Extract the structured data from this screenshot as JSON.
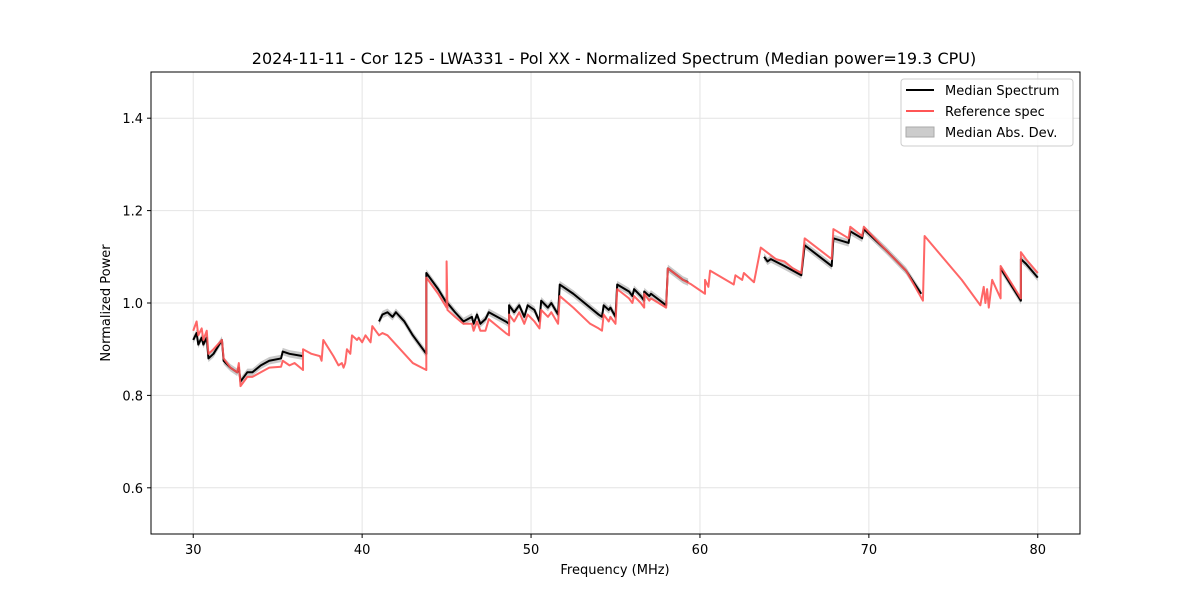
{
  "chart_data": {
    "type": "line",
    "title": "2024-11-11 - Cor 125 - LWA331 - Pol XX - Normalized Spectrum (Median power=19.3 CPU)",
    "xlabel": "Frequency (MHz)",
    "ylabel": "Normalized Power",
    "xlim": [
      27.5,
      82.5
    ],
    "ylim": [
      0.5,
      1.5
    ],
    "xticks": [
      30,
      40,
      50,
      60,
      70,
      80
    ],
    "yticks": [
      0.6,
      0.8,
      1.0,
      1.2,
      1.4
    ],
    "xtick_labels": [
      "30",
      "40",
      "50",
      "60",
      "70",
      "80"
    ],
    "ytick_labels": [
      "0.6",
      "0.8",
      "1.0",
      "1.2",
      "1.4"
    ],
    "grid": true,
    "legend_position": "top-right",
    "legend": [
      "Median Spectrum",
      "Reference spec",
      "Median Abs. Dev."
    ],
    "colors": {
      "median": "#000000",
      "reference": "#ff5555",
      "mad": "#bbbbbb"
    },
    "mad": 0.008,
    "series": [
      {
        "name": "Reference spec",
        "points": [
          [
            30.0,
            0.94
          ],
          [
            30.2,
            0.96
          ],
          [
            30.3,
            0.93
          ],
          [
            30.5,
            0.945
          ],
          [
            30.6,
            0.92
          ],
          [
            30.8,
            0.94
          ],
          [
            30.9,
            0.89
          ],
          [
            31.2,
            0.9
          ],
          [
            31.7,
            0.92
          ],
          [
            31.8,
            0.88
          ],
          [
            32.2,
            0.86
          ],
          [
            32.6,
            0.85
          ],
          [
            32.7,
            0.87
          ],
          [
            32.8,
            0.82
          ],
          [
            33.2,
            0.84
          ],
          [
            33.5,
            0.84
          ],
          [
            34.0,
            0.85
          ],
          [
            34.5,
            0.86
          ],
          [
            35.2,
            0.862
          ],
          [
            35.3,
            0.875
          ],
          [
            35.7,
            0.865
          ],
          [
            36.0,
            0.87
          ],
          [
            36.5,
            0.855
          ],
          [
            36.5,
            0.9
          ],
          [
            37.0,
            0.89
          ],
          [
            37.5,
            0.885
          ],
          [
            37.6,
            0.875
          ],
          [
            37.7,
            0.92
          ],
          [
            38.3,
            0.885
          ],
          [
            38.6,
            0.865
          ],
          [
            38.8,
            0.87
          ],
          [
            38.9,
            0.86
          ],
          [
            39.0,
            0.87
          ],
          [
            39.1,
            0.9
          ],
          [
            39.3,
            0.89
          ],
          [
            39.4,
            0.93
          ],
          [
            39.7,
            0.92
          ],
          [
            39.8,
            0.925
          ],
          [
            40.0,
            0.915
          ],
          [
            40.2,
            0.93
          ],
          [
            40.5,
            0.915
          ],
          [
            40.6,
            0.95
          ],
          [
            41.0,
            0.93
          ],
          [
            41.2,
            0.935
          ],
          [
            41.5,
            0.93
          ],
          [
            42.0,
            0.91
          ],
          [
            42.5,
            0.89
          ],
          [
            43.0,
            0.87
          ],
          [
            43.8,
            0.855
          ],
          [
            43.8,
            1.055
          ],
          [
            44.5,
            1.02
          ],
          [
            45.0,
            0.99
          ],
          [
            45.0,
            1.09
          ],
          [
            45.05,
            0.985
          ],
          [
            45.5,
            0.97
          ],
          [
            46.0,
            0.955
          ],
          [
            46.5,
            0.955
          ],
          [
            46.6,
            0.94
          ],
          [
            46.8,
            0.96
          ],
          [
            47.0,
            0.94
          ],
          [
            47.3,
            0.94
          ],
          [
            47.5,
            0.965
          ],
          [
            48.0,
            0.95
          ],
          [
            48.5,
            0.935
          ],
          [
            48.7,
            0.93
          ],
          [
            48.7,
            0.975
          ],
          [
            49.0,
            0.96
          ],
          [
            49.3,
            0.98
          ],
          [
            49.6,
            0.955
          ],
          [
            49.8,
            0.975
          ],
          [
            50.2,
            0.96
          ],
          [
            50.5,
            0.945
          ],
          [
            50.6,
            0.985
          ],
          [
            51.0,
            0.97
          ],
          [
            51.2,
            0.98
          ],
          [
            51.6,
            0.955
          ],
          [
            51.7,
            1.015
          ],
          [
            52.5,
            0.99
          ],
          [
            53.5,
            0.955
          ],
          [
            54.0,
            0.945
          ],
          [
            54.2,
            0.94
          ],
          [
            54.3,
            0.975
          ],
          [
            54.6,
            0.96
          ],
          [
            54.7,
            0.97
          ],
          [
            55.0,
            0.955
          ],
          [
            55.1,
            1.03
          ],
          [
            55.8,
            1.01
          ],
          [
            56.0,
            1.0
          ],
          [
            56.1,
            1.015
          ],
          [
            56.5,
            1.0
          ],
          [
            56.7,
            0.99
          ],
          [
            56.7,
            1.02
          ],
          [
            57.0,
            1.005
          ],
          [
            57.1,
            1.01
          ],
          [
            58.0,
            0.99
          ],
          [
            58.1,
            1.075
          ],
          [
            59.0,
            1.05
          ],
          [
            59.5,
            1.04
          ],
          [
            60.3,
            1.02
          ],
          [
            60.3,
            1.05
          ],
          [
            60.5,
            1.035
          ],
          [
            60.6,
            1.07
          ],
          [
            62.0,
            1.04
          ],
          [
            62.1,
            1.06
          ],
          [
            62.5,
            1.05
          ],
          [
            62.6,
            1.065
          ],
          [
            63.2,
            1.045
          ],
          [
            63.6,
            1.12
          ],
          [
            64.5,
            1.095
          ],
          [
            65.0,
            1.09
          ],
          [
            65.5,
            1.075
          ],
          [
            66.0,
            1.065
          ],
          [
            66.2,
            1.14
          ],
          [
            67.8,
            1.095
          ],
          [
            67.9,
            1.16
          ],
          [
            68.8,
            1.14
          ],
          [
            68.9,
            1.165
          ],
          [
            69.6,
            1.145
          ],
          [
            69.7,
            1.165
          ],
          [
            71.0,
            1.115
          ],
          [
            72.2,
            1.07
          ],
          [
            73.2,
            1.005
          ],
          [
            73.3,
            1.145
          ],
          [
            75.5,
            1.05
          ],
          [
            76.6,
            0.995
          ],
          [
            76.8,
            1.035
          ],
          [
            76.9,
            1.0
          ],
          [
            77.0,
            1.03
          ],
          [
            77.1,
            0.99
          ],
          [
            77.3,
            1.05
          ],
          [
            77.8,
            1.01
          ],
          [
            77.8,
            1.08
          ],
          [
            79.0,
            1.01
          ],
          [
            79.0,
            1.11
          ],
          [
            79.3,
            1.095
          ],
          [
            80.0,
            1.065
          ]
        ]
      },
      {
        "name": "Median Spectrum",
        "points": [
          [
            30.0,
            0.92
          ],
          [
            30.2,
            0.935
          ],
          [
            30.3,
            0.91
          ],
          [
            30.5,
            0.925
          ],
          [
            30.6,
            0.91
          ],
          [
            30.8,
            0.925
          ],
          [
            30.9,
            0.88
          ],
          [
            31.2,
            0.89
          ],
          [
            31.7,
            0.92
          ],
          [
            31.8,
            0.875
          ],
          [
            32.2,
            0.86
          ],
          [
            32.6,
            0.85
          ],
          [
            32.7,
            0.86
          ],
          [
            32.8,
            0.83
          ],
          [
            33.2,
            0.85
          ],
          [
            33.5,
            0.85
          ],
          [
            34.0,
            0.865
          ],
          [
            34.5,
            0.875
          ],
          [
            35.2,
            0.88
          ],
          [
            35.3,
            0.895
          ],
          [
            35.7,
            0.89
          ],
          [
            36.5,
            0.885
          ],
          null,
          [
            41.0,
            0.96
          ],
          [
            41.2,
            0.975
          ],
          [
            41.5,
            0.98
          ],
          [
            41.8,
            0.97
          ],
          [
            42.0,
            0.98
          ],
          [
            42.5,
            0.96
          ],
          [
            43.0,
            0.93
          ],
          [
            43.8,
            0.89
          ],
          [
            43.8,
            1.065
          ],
          [
            44.5,
            1.03
          ],
          [
            45.0,
            1.0
          ],
          [
            45.05,
            1.0
          ],
          [
            45.5,
            0.98
          ],
          [
            46.0,
            0.96
          ],
          [
            46.5,
            0.97
          ],
          [
            46.6,
            0.955
          ],
          [
            46.8,
            0.975
          ],
          [
            47.0,
            0.955
          ],
          [
            47.3,
            0.965
          ],
          [
            47.5,
            0.98
          ],
          [
            48.5,
            0.96
          ],
          [
            48.7,
            0.955
          ],
          [
            48.7,
            0.995
          ],
          [
            49.0,
            0.98
          ],
          [
            49.3,
            0.995
          ],
          [
            49.6,
            0.97
          ],
          [
            49.8,
            0.995
          ],
          [
            50.2,
            0.985
          ],
          [
            50.5,
            0.96
          ],
          [
            50.6,
            1.005
          ],
          [
            51.0,
            0.99
          ],
          [
            51.2,
            1.0
          ],
          [
            51.6,
            0.975
          ],
          [
            51.7,
            1.04
          ],
          [
            52.5,
            1.02
          ],
          [
            54.0,
            0.975
          ],
          [
            54.2,
            0.97
          ],
          [
            54.3,
            0.995
          ],
          [
            54.6,
            0.985
          ],
          [
            54.7,
            0.99
          ],
          [
            55.0,
            0.97
          ],
          [
            55.1,
            1.04
          ],
          [
            55.8,
            1.025
          ],
          [
            56.0,
            1.015
          ],
          [
            56.1,
            1.03
          ],
          [
            56.5,
            1.015
          ],
          [
            56.7,
            1.005
          ],
          [
            56.7,
            1.025
          ],
          [
            57.0,
            1.015
          ],
          [
            57.1,
            1.02
          ],
          [
            58.0,
            0.995
          ],
          [
            58.1,
            1.075
          ],
          [
            59.0,
            1.05
          ],
          [
            59.3,
            1.045
          ],
          null,
          [
            63.8,
            1.1
          ],
          [
            64.0,
            1.09
          ],
          [
            64.2,
            1.095
          ],
          [
            65.0,
            1.08
          ],
          [
            65.5,
            1.07
          ],
          [
            66.0,
            1.06
          ],
          [
            66.2,
            1.125
          ],
          [
            67.8,
            1.08
          ],
          [
            67.9,
            1.14
          ],
          [
            68.8,
            1.13
          ],
          [
            68.9,
            1.155
          ],
          [
            69.6,
            1.14
          ],
          [
            69.7,
            1.16
          ],
          [
            71.0,
            1.115
          ],
          [
            72.2,
            1.07
          ],
          [
            73.1,
            1.02
          ],
          null,
          [
            77.8,
            1.075
          ],
          [
            79.0,
            1.005
          ],
          [
            79.0,
            1.095
          ],
          [
            79.3,
            1.085
          ],
          [
            80.0,
            1.055
          ]
        ]
      }
    ]
  }
}
